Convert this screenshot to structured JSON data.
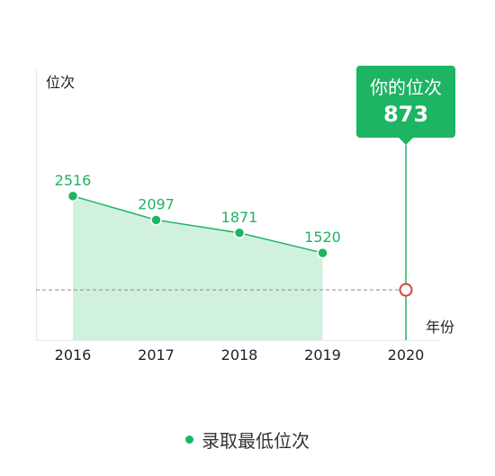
{
  "chart_data": {
    "type": "area",
    "categories": [
      "2016",
      "2017",
      "2018",
      "2019",
      "2020"
    ],
    "series": [
      {
        "name": "录取最低位次",
        "values": [
          2516,
          2097,
          1871,
          1520,
          null
        ]
      }
    ],
    "ylabel": "位次",
    "xlabel": "年份",
    "data_labels": [
      "2516",
      "2097",
      "1871",
      "1520"
    ],
    "highlight": {
      "category": "2020",
      "title": "你的位次",
      "value": 873,
      "value_label": "873"
    },
    "colors": {
      "line": "#1db463",
      "area": "#d1f1df",
      "marker": "#1db463",
      "highlight_marker": "#d9453c",
      "reference_line": "#8a8a8a",
      "callout": "#1db463"
    },
    "y_axis_tick_labels": "none",
    "grid": false,
    "legend_position": "bottom-center"
  },
  "legend": {
    "label": "录取最低位次",
    "color": "#1db463"
  }
}
